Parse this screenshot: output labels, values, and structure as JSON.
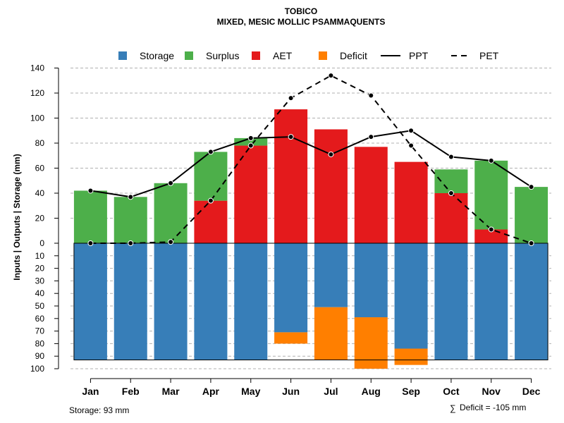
{
  "chart_data": {
    "type": "bar",
    "title": "TOBICO",
    "subtitle": "MIXED, MESIC MOLLIC PSAMMAQUENTS",
    "ylabel": "Inputs | Outputs | Storage    (mm)",
    "ylim_upper": [
      0,
      140
    ],
    "ylim_lower": [
      0,
      100
    ],
    "upper_ticks": [
      "140",
      "120",
      "100",
      "80",
      "60",
      "40",
      "20",
      "0"
    ],
    "upper_tick_values": [
      140,
      120,
      100,
      80,
      60,
      40,
      20,
      0
    ],
    "lower_ticks": [
      "10",
      "20",
      "30",
      "40",
      "50",
      "60",
      "70",
      "80",
      "90",
      "100"
    ],
    "lower_tick_values": [
      10,
      20,
      30,
      40,
      50,
      60,
      70,
      80,
      90,
      100
    ],
    "categories": [
      "Jan",
      "Feb",
      "Mar",
      "Apr",
      "May",
      "Jun",
      "Jul",
      "Aug",
      "Sep",
      "Oct",
      "Nov",
      "Dec"
    ],
    "legend": [
      {
        "label": "Storage",
        "kind": "box",
        "color": "#377EB8"
      },
      {
        "label": "Surplus",
        "kind": "box",
        "color": "#4DAF4A"
      },
      {
        "label": "AET",
        "kind": "box",
        "color": "#E41A1C"
      },
      {
        "label": "Deficit",
        "kind": "box",
        "color": "#FF7F00"
      },
      {
        "label": "PPT",
        "kind": "solid",
        "color": "#000000"
      },
      {
        "label": "PET",
        "kind": "dashed",
        "color": "#000000"
      }
    ],
    "series": [
      {
        "name": "AET",
        "values": [
          0,
          0,
          0,
          34,
          78,
          107,
          91,
          77,
          65,
          40,
          11,
          0
        ]
      },
      {
        "name": "Surplus",
        "values": [
          42,
          37,
          48,
          39,
          6,
          0,
          0,
          0,
          0,
          19,
          55,
          45
        ]
      },
      {
        "name": "Storage",
        "values": [
          93,
          93,
          93,
          93,
          93,
          71,
          51,
          59,
          84,
          93,
          93,
          93
        ]
      },
      {
        "name": "Deficit",
        "values": [
          0,
          0,
          0,
          0,
          0,
          9,
          42,
          41,
          13,
          0,
          0,
          0
        ]
      },
      {
        "name": "PPT",
        "values": [
          42,
          37,
          48,
          73,
          84,
          85,
          71,
          85,
          90,
          69,
          66,
          45
        ]
      },
      {
        "name": "PET",
        "values": [
          0,
          0,
          1,
          34,
          78,
          116,
          134,
          118,
          78,
          40,
          11,
          0
        ]
      }
    ],
    "storage_capacity": 93,
    "colors": {
      "storage": "#377EB8",
      "surplus": "#4DAF4A",
      "aet": "#E41A1C",
      "deficit": "#FF7F00"
    }
  },
  "footer": {
    "storage_note": "Storage: 93 mm",
    "deficit_symbol": "∑",
    "deficit_note": "Deficit = -105 mm"
  }
}
